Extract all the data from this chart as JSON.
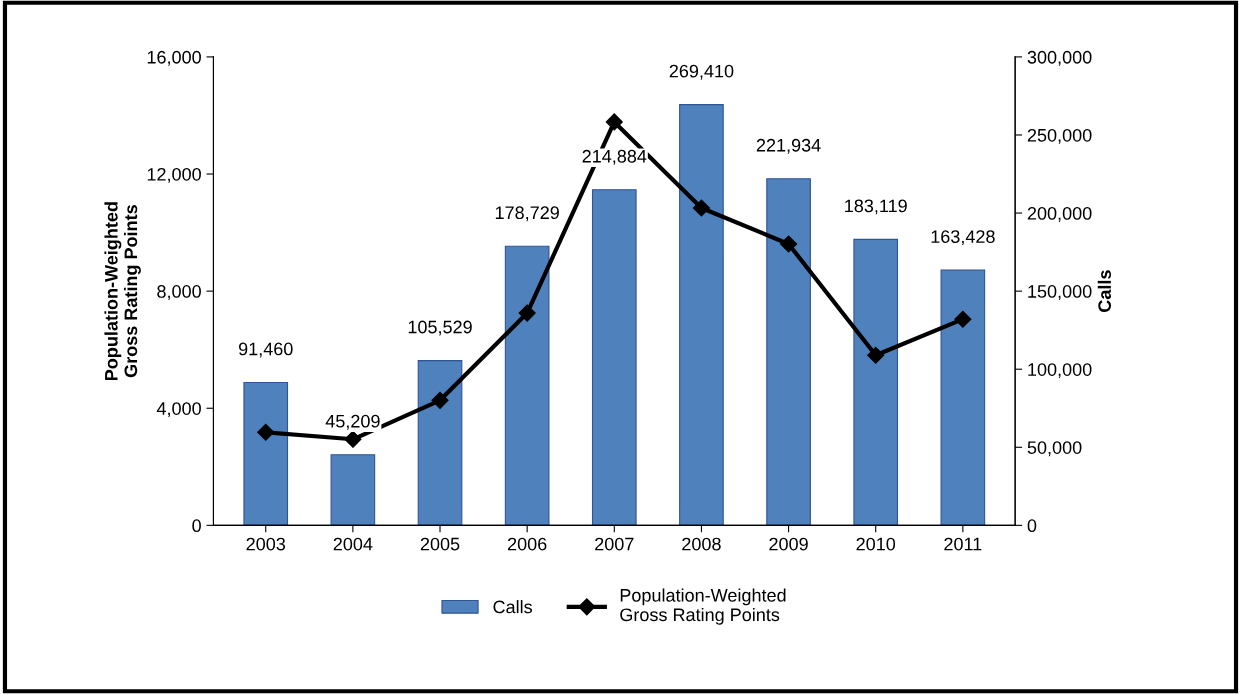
{
  "chart_data": {
    "type": "bar",
    "categories": [
      "2003",
      "2004",
      "2005",
      "2006",
      "2007",
      "2008",
      "2009",
      "2010",
      "2011"
    ],
    "ylabel": "Population-Weighted\nGross Rating Points",
    "y2label": "Calls",
    "ylim": [
      0,
      16000
    ],
    "yticks": [
      0,
      {
        "value": 4000,
        "label": "4,000"
      },
      {
        "value": 8000,
        "label": "8,000"
      },
      {
        "value": 12000,
        "label": "12,000"
      },
      {
        "value": 16000,
        "label": "16,000"
      }
    ],
    "y2lim": [
      0,
      300000
    ],
    "y2ticks": [
      0,
      {
        "value": 50000,
        "label": "50,000"
      },
      {
        "value": 100000,
        "label": "100,000"
      },
      {
        "value": 150000,
        "label": "150,000"
      },
      {
        "value": 200000,
        "label": "200,000"
      },
      {
        "value": 250000,
        "label": "250,000"
      },
      {
        "value": 300000,
        "label": "300,000"
      }
    ],
    "series": [
      {
        "name": "Calls",
        "axis": "y2",
        "color": "#4f81bd",
        "values": [
          91460,
          45209,
          105529,
          178729,
          214884,
          269410,
          221934,
          183119,
          163428
        ],
        "value_labels": [
          "91,460",
          "45,209",
          "105,529",
          "178,729",
          "214,884",
          "269,410",
          "221,934",
          "183,119",
          "163,428"
        ]
      },
      {
        "name": "Population-Weighted\nGross Rating Points",
        "type": "line",
        "axis": "y",
        "color": "#000000",
        "marker": "diamond",
        "line_style": "solid",
        "values": [
          3180,
          2940,
          4270,
          7250,
          13780,
          10840,
          9610,
          5810,
          7040
        ]
      }
    ],
    "legend": "bottom",
    "grid": false
  }
}
